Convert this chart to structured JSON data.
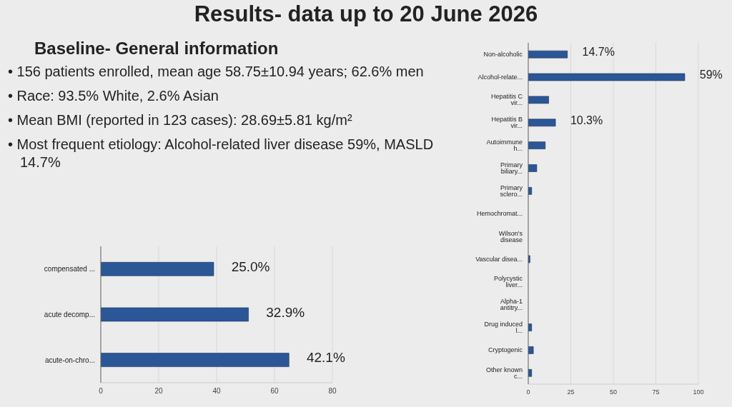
{
  "chart_data": [
    {
      "type": "other",
      "title": "Results- data up to 20 June 2026",
      "subtitle": "Baseline- General information",
      "annotations": [
        "• 156 patients enrolled, mean age 58.75±10.94 years; 62.6% men",
        "• Race: 93.5% White, 2.6% Asian",
        "• Mean BMI (reported in 123 cases): 28.69±5.81 kg/m²",
        "• Most frequent etiology: Alcohol-related liver disease 59%, MASLD 14.7%"
      ]
    },
    {
      "type": "bar",
      "orientation": "horizontal",
      "categories": [
        "compensated ...",
        "acute decomp...",
        "acute-on-chro..."
      ],
      "values": [
        39,
        51,
        65
      ],
      "color": "#2b5797",
      "xlim": [
        0,
        80
      ],
      "xticks": [
        0,
        20,
        40,
        60,
        80
      ],
      "grid": "x",
      "annotations": [
        {
          "text": "25.0%",
          "x": 39,
          "y": "compensated ..."
        },
        {
          "text": "32.9%",
          "x": 51,
          "y": "acute decomp..."
        },
        {
          "text": "42.1%",
          "x": 65,
          "y": "acute-on-chro..."
        }
      ]
    },
    {
      "type": "bar",
      "orientation": "horizontal",
      "categories": [
        "Non-alcoholic",
        "Alcohol-relate...",
        "Hepatitis C vir...",
        "Hepatitis B vir...",
        "Autoimmune h...",
        "Primary biliary...",
        "Primary sclero...",
        "Hemochromat...",
        "Wilson's disease",
        "Vascular disea...",
        "Polycystic liver...",
        "Alpha-1 antitry...",
        "Drug induced l...",
        "Cryptogenic",
        "Other known c..."
      ],
      "values": [
        23,
        92,
        12,
        16,
        10,
        5,
        2,
        0,
        0,
        1,
        0,
        0,
        2,
        3,
        2
      ],
      "color": "#2b5797",
      "xlim": [
        0,
        100
      ],
      "xticks": [
        0,
        25,
        50,
        75,
        100
      ],
      "grid": "x",
      "annotations": [
        {
          "text": "14.7%",
          "x": 23,
          "y": "Non-alcoholic"
        },
        {
          "text": "59%",
          "x": 92,
          "y": "Alcohol-relate..."
        },
        {
          "text": "10.3%",
          "x": 16,
          "y": "Hepatitis B vir..."
        }
      ]
    }
  ]
}
